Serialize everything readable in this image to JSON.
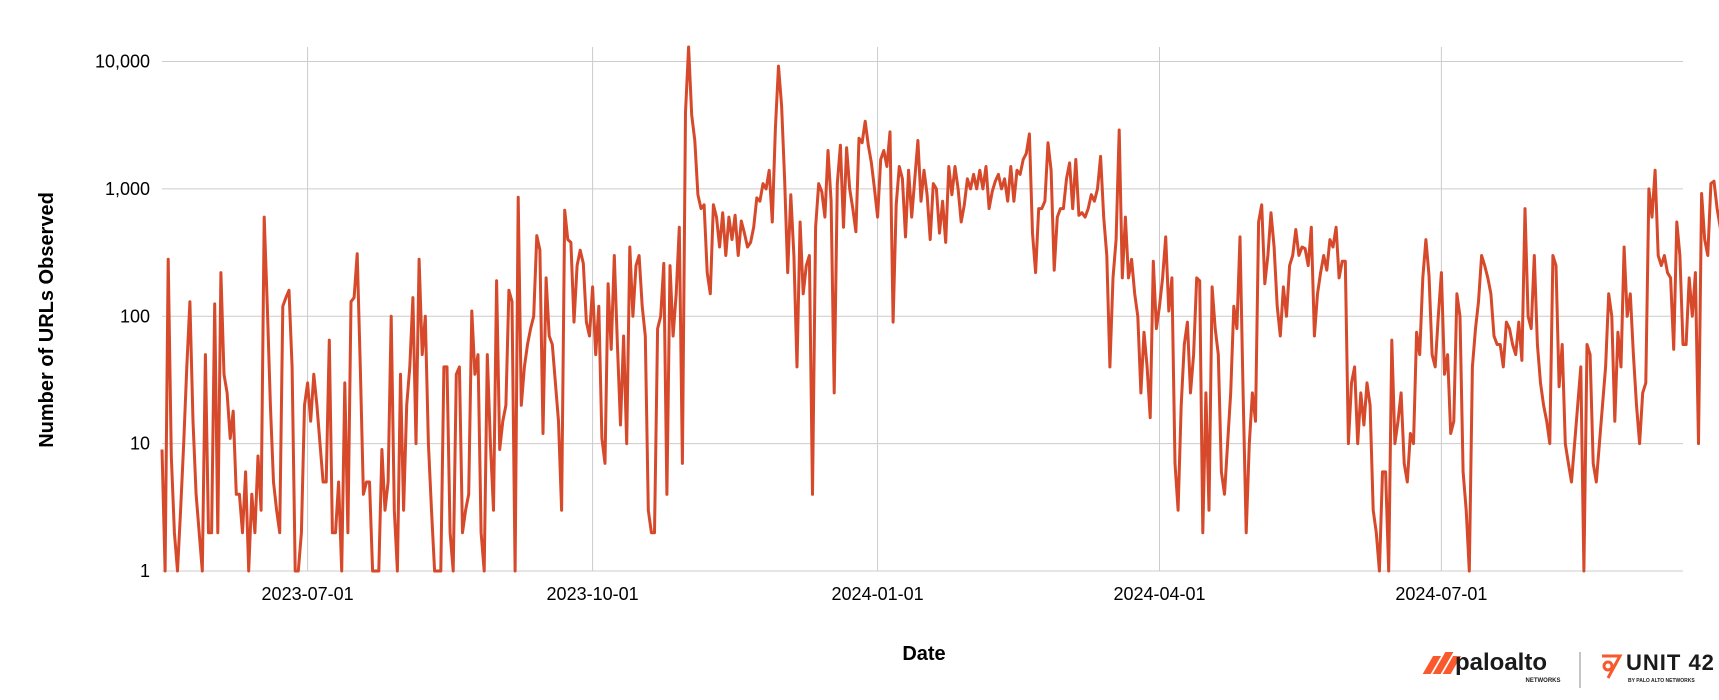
{
  "chart_data": {
    "type": "line",
    "xlabel": "Date",
    "ylabel": "Number of URLs Observed",
    "y_scale": "log",
    "ylim": [
      1,
      13000
    ],
    "xlim": [
      "2023-05-15",
      "2024-09-17"
    ],
    "grid": true,
    "line_color": "#d6492a",
    "y_ticks": [
      {
        "value": 1,
        "label": "1"
      },
      {
        "value": 10,
        "label": "10"
      },
      {
        "value": 100,
        "label": "100"
      },
      {
        "value": 1000,
        "label": "1,000"
      },
      {
        "value": 10000,
        "label": "10,000"
      }
    ],
    "x_ticks": [
      {
        "value": "2023-07-01",
        "label": "2023-07-01"
      },
      {
        "value": "2023-10-01",
        "label": "2023-10-01"
      },
      {
        "value": "2024-01-01",
        "label": "2024-01-01"
      },
      {
        "value": "2024-04-01",
        "label": "2024-04-01"
      },
      {
        "value": "2024-07-01",
        "label": "2024-07-01"
      }
    ],
    "start_date": "2023-05-15",
    "y": [
      9,
      1,
      280,
      8,
      2,
      1,
      3,
      10,
      40,
      130,
      15,
      4,
      2,
      1,
      50,
      2,
      2,
      125,
      2,
      220,
      35,
      25,
      11,
      18,
      4,
      4,
      2,
      6,
      1,
      4,
      2,
      8,
      3,
      600,
      120,
      20,
      5,
      3,
      2,
      120,
      140,
      160,
      40,
      1,
      1,
      2,
      20,
      30,
      15,
      35,
      20,
      10,
      5,
      5,
      65,
      2,
      2,
      5,
      1,
      30,
      2,
      130,
      140,
      310,
      40,
      4,
      5,
      5,
      1,
      1,
      1,
      9,
      3,
      5,
      100,
      3,
      1,
      35,
      3,
      20,
      40,
      140,
      10,
      280,
      50,
      100,
      10,
      3,
      1,
      1,
      1,
      40,
      40,
      2,
      1,
      35,
      40,
      2,
      3,
      4,
      110,
      35,
      50,
      2,
      1,
      50,
      10,
      3,
      190,
      9,
      15,
      20,
      160,
      130,
      1,
      860,
      20,
      40,
      60,
      80,
      100,
      430,
      330,
      12,
      200,
      70,
      60,
      30,
      15,
      3,
      680,
      400,
      380,
      90,
      250,
      330,
      260,
      90,
      70,
      170,
      50,
      120,
      11,
      7,
      180,
      55,
      300,
      60,
      14,
      70,
      10,
      350,
      100,
      250,
      300,
      120,
      70,
      3,
      2,
      2,
      80,
      100,
      260,
      4,
      250,
      70,
      150,
      500,
      7,
      4000,
      13000,
      3800,
      2400,
      900,
      700,
      750,
      220,
      150,
      750,
      600,
      350,
      650,
      300,
      600,
      400,
      620,
      300,
      560,
      450,
      350,
      380,
      500,
      850,
      800,
      1100,
      1000,
      1400,
      550,
      3000,
      9200,
      4500,
      1200,
      220,
      900,
      300,
      40,
      550,
      150,
      250,
      300,
      4,
      500,
      1100,
      950,
      600,
      2000,
      800,
      25,
      1100,
      2200,
      500,
      2100,
      1000,
      700,
      460,
      2500,
      2300,
      3400,
      2200,
      1600,
      1000,
      600,
      1700,
      2000,
      1500,
      2800,
      90,
      750,
      1500,
      1200,
      420,
      1400,
      600,
      1200,
      2400,
      800,
      1400,
      900,
      400,
      1100,
      1000,
      450,
      800,
      380,
      1500,
      900,
      1500,
      1000,
      550,
      750,
      1200,
      1000,
      1300,
      1000,
      1400,
      1000,
      1500,
      700,
      950,
      1150,
      1300,
      1000,
      1200,
      800,
      1500,
      800,
      1400,
      1300,
      1700,
      1900,
      2700,
      450,
      220,
      700,
      700,
      800,
      2300,
      1400,
      230,
      600,
      700,
      700,
      1200,
      1600,
      700,
      1700,
      620,
      650,
      600,
      700,
      900,
      800,
      1000,
      1800,
      600,
      300,
      40,
      200,
      400,
      2900,
      200,
      600,
      200,
      280,
      150,
      100,
      25,
      75,
      40,
      16,
      270,
      80,
      120,
      200,
      420,
      110,
      200,
      7,
      3,
      20,
      60,
      90,
      25,
      50,
      200,
      190,
      2,
      25,
      3,
      170,
      80,
      50,
      6,
      4,
      10,
      25,
      120,
      80,
      420,
      25,
      2,
      10,
      25,
      15,
      550,
      750,
      180,
      300,
      650,
      350,
      120,
      70,
      170,
      100,
      250,
      300,
      480,
      300,
      350,
      340,
      250,
      500,
      70,
      150,
      220,
      300,
      230,
      400,
      350,
      500,
      200,
      270,
      270,
      10,
      30,
      40,
      10,
      25,
      14,
      30,
      20,
      3,
      2,
      1,
      6,
      6,
      1,
      65,
      10,
      15,
      25,
      7,
      5,
      12,
      10,
      75,
      50,
      200,
      400,
      210,
      50,
      40,
      100,
      220,
      35,
      50,
      12,
      15,
      150,
      100,
      6,
      3,
      1,
      40,
      80,
      130,
      300,
      250,
      200,
      150,
      70,
      60,
      60,
      40,
      90,
      80,
      60,
      50,
      90,
      45,
      700,
      100,
      80,
      300,
      60,
      30,
      20,
      15,
      10,
      300,
      250,
      28,
      60,
      10,
      7,
      5,
      10,
      20,
      40,
      1,
      60,
      50,
      7,
      5,
      10,
      20,
      40,
      150,
      100,
      15,
      75,
      40,
      350,
      100,
      150,
      50,
      20,
      10,
      25,
      30,
      1000,
      600,
      1400,
      300,
      250,
      300,
      220,
      200,
      55,
      550,
      300,
      60,
      60,
      200,
      100,
      220,
      10,
      920,
      400,
      300,
      1100,
      1150,
      700,
      500,
      300,
      25
    ]
  },
  "branding": {
    "paloalto": "paloalto",
    "paloalto_sub": "NETWORKS",
    "unit42": "UNIT 42",
    "unit42_sub": "BY PALO ALTO NETWORKS"
  }
}
